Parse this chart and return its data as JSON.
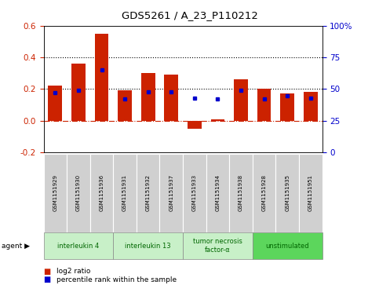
{
  "title": "GDS5261 / A_23_P110212",
  "samples": [
    "GSM1151929",
    "GSM1151930",
    "GSM1151936",
    "GSM1151931",
    "GSM1151932",
    "GSM1151937",
    "GSM1151933",
    "GSM1151934",
    "GSM1151938",
    "GSM1151928",
    "GSM1151935",
    "GSM1151951"
  ],
  "log2_ratio": [
    0.22,
    0.36,
    0.55,
    0.19,
    0.3,
    0.29,
    -0.05,
    0.01,
    0.26,
    0.2,
    0.17,
    0.18
  ],
  "percentile_rank": [
    47,
    49,
    65,
    42,
    48,
    48,
    43,
    42,
    49,
    42,
    45,
    43
  ],
  "agents": [
    {
      "label": "interleukin 4",
      "start": 0,
      "end": 3,
      "color": "#c8f0c8"
    },
    {
      "label": "interleukin 13",
      "start": 3,
      "end": 6,
      "color": "#c8f0c8"
    },
    {
      "label": "tumor necrosis\nfactor-α",
      "start": 6,
      "end": 9,
      "color": "#c8f0c8"
    },
    {
      "label": "unstimulated",
      "start": 9,
      "end": 12,
      "color": "#5cd65c"
    }
  ],
  "ylim_left": [
    -0.2,
    0.6
  ],
  "ylim_right": [
    0,
    100
  ],
  "yticks_left": [
    -0.2,
    0.0,
    0.2,
    0.4,
    0.6
  ],
  "yticks_right": [
    0,
    25,
    50,
    75,
    100
  ],
  "bar_color": "#cc2200",
  "percentile_color": "#0000cc",
  "background_color": "#ffffff",
  "zero_line_color": "#cc2200",
  "legend_log2": "log2 ratio",
  "legend_pct": "percentile rank within the sample",
  "agent_label": "agent",
  "sample_box_color": "#d0d0d0",
  "agent_border_color": "#888888"
}
